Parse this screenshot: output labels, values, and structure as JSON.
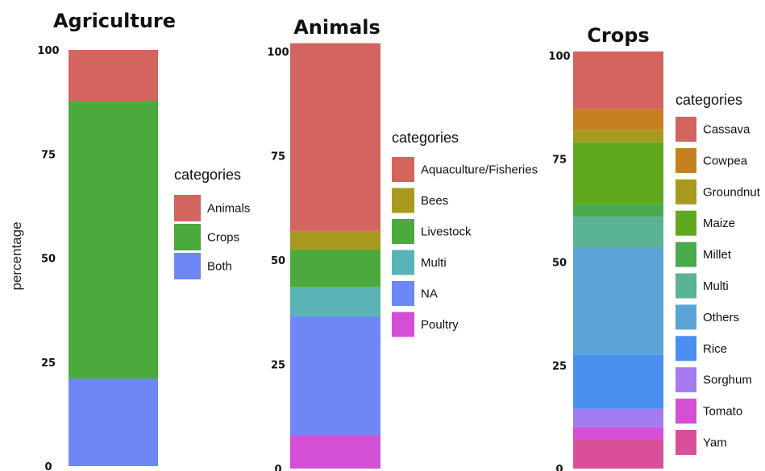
{
  "ylabel": "percentage",
  "chart_data": [
    {
      "type": "bar",
      "stacked": true,
      "title": "Agriculture",
      "ylim": [
        0,
        100
      ],
      "yticks": [
        0,
        25,
        50,
        75,
        100
      ],
      "ytick_labels": [
        "0",
        "25",
        "50",
        "75",
        "100"
      ],
      "legend_title": "categories",
      "legend_position": "right",
      "series": [
        {
          "name": "Animals",
          "value": 12.3,
          "color": "#d4645e"
        },
        {
          "name": "Crops",
          "value": 66.7,
          "color": "#4aab3c"
        },
        {
          "name": "Both",
          "value": 21.0,
          "color": "#6d88f5"
        }
      ]
    },
    {
      "type": "bar",
      "stacked": true,
      "title": "Animals",
      "ylim": [
        0,
        100
      ],
      "yticks": [
        0,
        25,
        50,
        75,
        100
      ],
      "ytick_labels": [
        "0",
        "25",
        "50",
        "75",
        "100"
      ],
      "legend_title": "categories",
      "legend_position": "right",
      "series": [
        {
          "name": "Aquaculture/Fisheries",
          "value": 45.0,
          "color": "#d4645e"
        },
        {
          "name": "Bees",
          "value": 4.5,
          "color": "#a89a1f"
        },
        {
          "name": "Livestock",
          "value": 9.0,
          "color": "#4aab3c"
        },
        {
          "name": "Multi",
          "value": 7.0,
          "color": "#5ab3b5"
        },
        {
          "name": "NA",
          "value": 28.5,
          "color": "#6d88f5"
        },
        {
          "name": "Poultry",
          "value": 8.0,
          "color": "#d34fd6"
        }
      ]
    },
    {
      "type": "bar",
      "stacked": true,
      "title": "Crops",
      "ylim": [
        0,
        100
      ],
      "yticks": [
        0,
        25,
        50,
        75,
        100
      ],
      "ytick_labels": [
        "0",
        "25",
        "50",
        "75",
        "100"
      ],
      "legend_title": "categories",
      "legend_position": "right",
      "series": [
        {
          "name": "Cassava",
          "value": 14.0,
          "color": "#d4645e"
        },
        {
          "name": "Cowpea",
          "value": 5.0,
          "color": "#c6801f"
        },
        {
          "name": "Groundnut",
          "value": 3.0,
          "color": "#a89a1f"
        },
        {
          "name": "Maize",
          "value": 15.0,
          "color": "#5ea91e"
        },
        {
          "name": "Millet",
          "value": 3.0,
          "color": "#4aab4e"
        },
        {
          "name": "Multi",
          "value": 7.5,
          "color": "#5bb396"
        },
        {
          "name": "Others",
          "value": 26.0,
          "color": "#5aa4d6"
        },
        {
          "name": "Rice",
          "value": 13.0,
          "color": "#4a8ff0"
        },
        {
          "name": "Sorghum",
          "value": 4.5,
          "color": "#a57cf0"
        },
        {
          "name": "Tomato",
          "value": 3.0,
          "color": "#d34fd6"
        },
        {
          "name": "Yam",
          "value": 7.0,
          "color": "#d94f9a"
        }
      ]
    }
  ]
}
